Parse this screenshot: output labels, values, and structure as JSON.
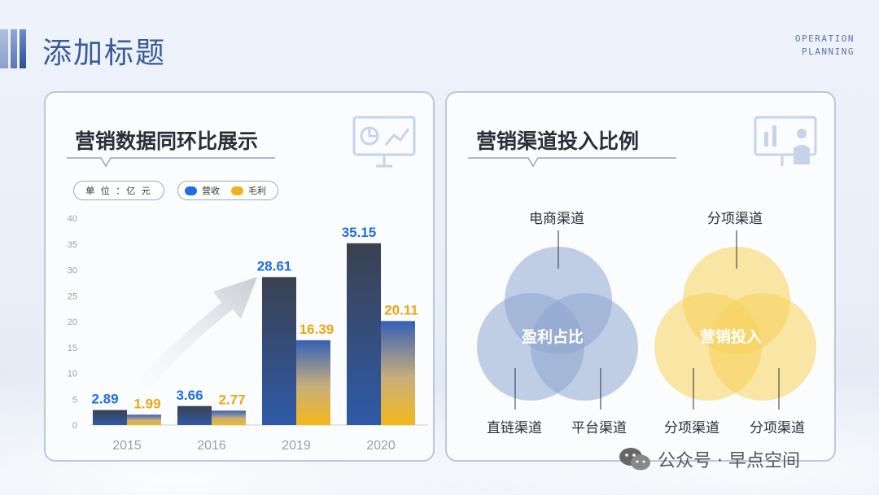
{
  "page": {
    "title": "添加标题",
    "corner_line1": "OPERATION",
    "corner_line2": "PLANNING"
  },
  "left_card": {
    "title": "营销数据同环比展示",
    "unit": "单 位 ：亿 元",
    "legend": [
      {
        "label": "营收",
        "color": "#1f6fe0"
      },
      {
        "label": "毛利",
        "color": "#f0b31f"
      }
    ]
  },
  "right_card": {
    "title": "营销渠道投入比例",
    "venn1": {
      "top": "电商渠道",
      "bottom_left": "直链渠道",
      "bottom_right": "平台渠道",
      "center": "盈利占比",
      "color": "#8ea6d0"
    },
    "venn2": {
      "top": "分项渠道",
      "bottom_left": "分项渠道",
      "bottom_right": "分项渠道",
      "center": "营销投入",
      "color": "#f7d15a"
    }
  },
  "watermark": {
    "text": "公众号 · 早点空间"
  },
  "chart_data": {
    "type": "bar",
    "categories": [
      "2015",
      "2016",
      "2019",
      "2020"
    ],
    "series": [
      {
        "name": "营收",
        "values": [
          2.89,
          3.66,
          28.61,
          35.15
        ],
        "label_color": "#1f6fe0"
      },
      {
        "name": "毛利",
        "values": [
          1.99,
          2.77,
          16.39,
          20.11
        ],
        "label_color": "#e8a712"
      }
    ],
    "ylim": [
      0,
      40
    ],
    "yticks": [
      0,
      5,
      10,
      15,
      20,
      25,
      30,
      35,
      40
    ],
    "grid": false
  }
}
